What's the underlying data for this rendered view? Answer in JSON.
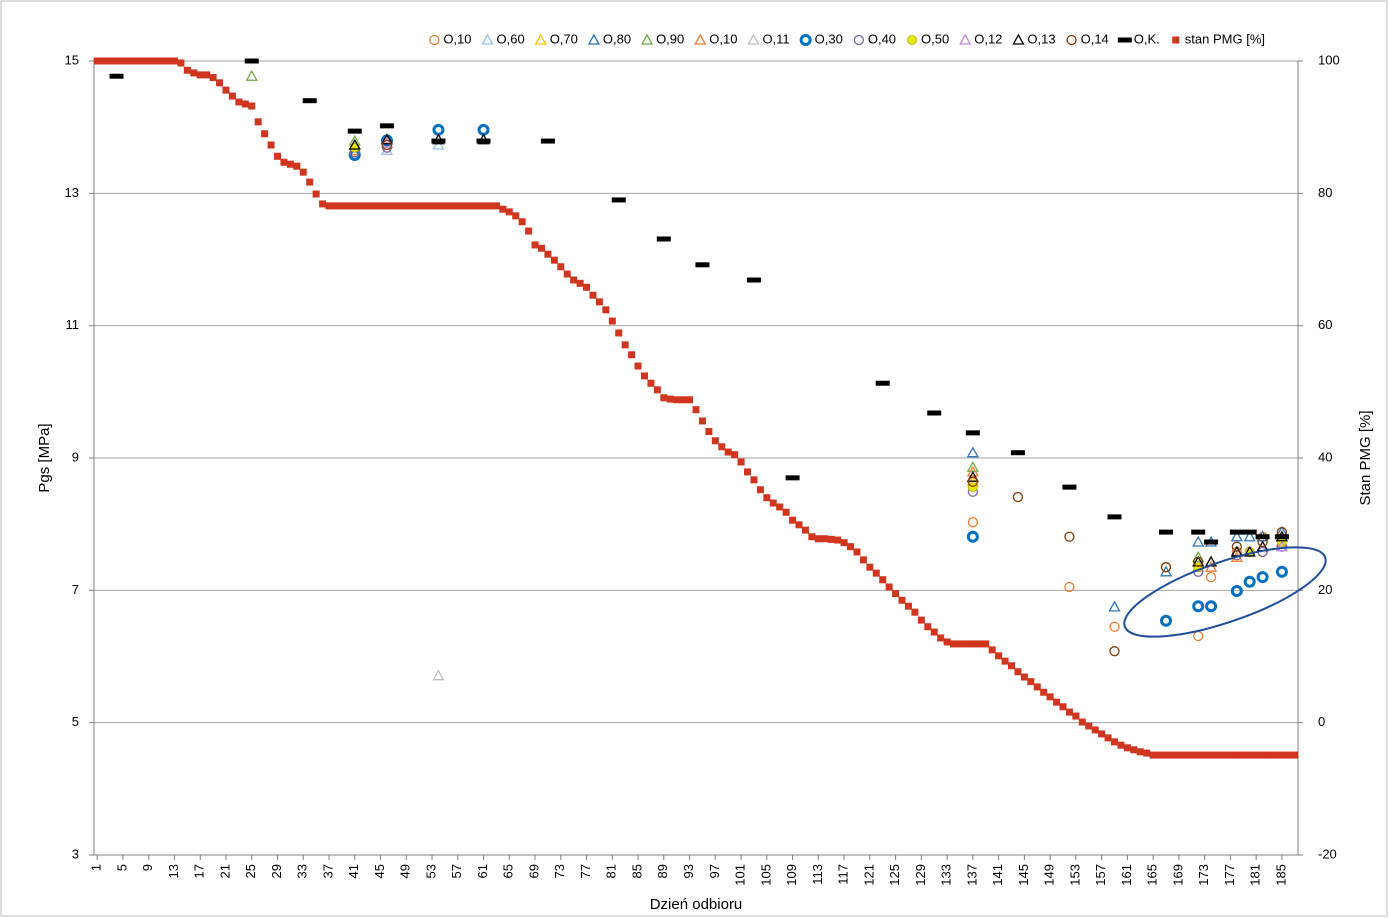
{
  "chart_data": {
    "type": "scatter",
    "x_label": "Dzień odbioru",
    "y_label": "Pgs [MPa]",
    "y2_label": "Stan PMG [%]",
    "xlim": [
      0.5,
      187.5
    ],
    "xticks": [
      1,
      5,
      9,
      13,
      17,
      21,
      25,
      29,
      33,
      37,
      41,
      45,
      49,
      53,
      57,
      61,
      65,
      69,
      73,
      77,
      81,
      85,
      89,
      93,
      97,
      101,
      105,
      109,
      113,
      117,
      121,
      125,
      129,
      133,
      137,
      141,
      145,
      149,
      153,
      157,
      161,
      165,
      169,
      173,
      177,
      181,
      185
    ],
    "ylim": [
      3,
      15
    ],
    "yticks": [
      3,
      5,
      7,
      9,
      11,
      13,
      15
    ],
    "y2lim": [
      -20,
      100
    ],
    "y2ticks": [
      -20,
      0,
      20,
      40,
      60,
      80,
      100
    ],
    "grid": true,
    "series": [
      {
        "name": "O,10",
        "color": "#ed7d31",
        "marker": "circle",
        "x": [
          41,
          46,
          137,
          152,
          159,
          167,
          172,
          174,
          178,
          180,
          182,
          185
        ],
        "values": [
          13.65,
          13.73,
          8.03,
          7.05,
          6.45,
          7.35,
          6.31,
          7.2,
          7.58,
          7.58,
          7.81,
          7.88
        ]
      },
      {
        "name": "O,60",
        "color": "#9dc3e6",
        "marker": "triangle",
        "x": [
          41,
          46,
          54
        ],
        "values": [
          13.72,
          13.65,
          13.73
        ]
      },
      {
        "name": "O,70",
        "color": "#ffc000",
        "marker": "triangle",
        "x": [
          41,
          46,
          137,
          172,
          178,
          185
        ],
        "values": [
          13.73,
          13.76,
          8.64,
          7.35,
          7.58,
          7.81
        ]
      },
      {
        "name": "O,80",
        "color": "#2e75b6",
        "marker": "triangle",
        "x": [
          137,
          159,
          167,
          172,
          174,
          178,
          180,
          182,
          185
        ],
        "values": [
          9.08,
          6.75,
          7.28,
          7.73,
          7.73,
          7.81,
          7.81,
          7.81,
          7.88
        ]
      },
      {
        "name": "O,90",
        "color": "#70ad47",
        "marker": "triangle",
        "x": [
          25,
          41,
          46,
          137,
          172,
          178,
          185
        ],
        "values": [
          14.77,
          13.79,
          13.81,
          8.86,
          7.5,
          7.58,
          7.81
        ]
      },
      {
        "name": "O,10",
        "color": "#ed7d31",
        "marker": "triangle",
        "x": [
          137,
          174,
          178,
          185
        ],
        "values": [
          8.79,
          7.35,
          7.5,
          7.73
        ]
      },
      {
        "name": "O,11",
        "color": "#bfbfbf",
        "marker": "triangle",
        "x": [
          54
        ],
        "values": [
          5.71
        ]
      },
      {
        "name": "O,30",
        "color": "#0070c0",
        "marker": "circle-bold",
        "x": [
          41,
          46,
          54,
          61,
          137,
          167,
          172,
          174,
          178,
          180,
          182,
          185
        ],
        "values": [
          13.58,
          13.8,
          13.96,
          13.96,
          7.81,
          6.54,
          6.76,
          6.76,
          6.99,
          7.13,
          7.2,
          7.28
        ]
      },
      {
        "name": "O,40",
        "color": "#8064a2",
        "marker": "circle",
        "x": [
          41,
          46,
          137,
          172,
          178,
          182,
          185
        ],
        "values": [
          13.62,
          13.69,
          8.49,
          7.28,
          7.53,
          7.58,
          7.66
        ]
      },
      {
        "name": "O,50",
        "color": "#e6e600",
        "marker": "circle-filled",
        "x": [
          41,
          137,
          172,
          180,
          185
        ],
        "values": [
          13.69,
          8.56,
          7.35,
          7.58,
          7.73
        ]
      },
      {
        "name": "O,12",
        "color": "#c58bd6",
        "marker": "triangle",
        "x": [
          46,
          185
        ],
        "values": [
          13.76,
          7.66
        ]
      },
      {
        "name": "O,13",
        "color": "#000000",
        "marker": "triangle",
        "x": [
          41,
          46,
          54,
          61,
          137,
          172,
          174,
          178,
          180,
          182,
          185
        ],
        "values": [
          13.73,
          13.81,
          13.81,
          13.81,
          8.71,
          7.43,
          7.43,
          7.58,
          7.58,
          7.66,
          7.81
        ]
      },
      {
        "name": "O,14",
        "color": "#843c0c",
        "marker": "circle",
        "x": [
          46,
          137,
          144,
          152,
          159,
          167,
          172,
          178,
          182,
          185
        ],
        "values": [
          13.73,
          8.64,
          8.41,
          7.81,
          6.08,
          7.35,
          7.43,
          7.66,
          7.73,
          7.88
        ]
      },
      {
        "name": "O,K.",
        "color": "#000000",
        "marker": "dash",
        "x": [
          4,
          25,
          34,
          41,
          46,
          54,
          61,
          71,
          82,
          89,
          95,
          103,
          109,
          123,
          131,
          137,
          144,
          152,
          159,
          167,
          172,
          174,
          178,
          180,
          182,
          185
        ],
        "values": [
          14.77,
          15.0,
          14.4,
          13.94,
          14.02,
          13.79,
          13.79,
          13.79,
          12.9,
          12.31,
          11.92,
          11.69,
          8.7,
          10.13,
          9.68,
          9.38,
          9.08,
          8.56,
          8.11,
          7.88,
          7.88,
          7.73,
          7.88,
          7.88,
          7.81,
          7.81
        ]
      },
      {
        "name": "stan PMG [%]",
        "color": "#d0351f",
        "marker": "square",
        "axis": "y2",
        "x": [
          1,
          2,
          3,
          4,
          5,
          6,
          7,
          8,
          9,
          10,
          11,
          12,
          13,
          14,
          15,
          16,
          17,
          18,
          19,
          20,
          21,
          22,
          23,
          24,
          25,
          26,
          27,
          28,
          29,
          30,
          31,
          32,
          33,
          34,
          35,
          36,
          37,
          38,
          39,
          40,
          41,
          42,
          43,
          44,
          45,
          46,
          47,
          48,
          49,
          50,
          51,
          52,
          53,
          54,
          55,
          56,
          57,
          58,
          59,
          60,
          61,
          62,
          63,
          64,
          65,
          66,
          67,
          68,
          69,
          70,
          71,
          72,
          73,
          74,
          75,
          76,
          77,
          78,
          79,
          80,
          81,
          82,
          83,
          84,
          85,
          86,
          87,
          88,
          89,
          90,
          91,
          92,
          93,
          94,
          95,
          96,
          97,
          98,
          99,
          100,
          101,
          102,
          103,
          104,
          105,
          106,
          107,
          108,
          109,
          110,
          111,
          112,
          113,
          114,
          115,
          116,
          117,
          118,
          119,
          120,
          121,
          122,
          123,
          124,
          125,
          126,
          127,
          128,
          129,
          130,
          131,
          132,
          133,
          134,
          135,
          136,
          137,
          138,
          139,
          140,
          141,
          142,
          143,
          144,
          145,
          146,
          147,
          148,
          149,
          150,
          151,
          152,
          153,
          154,
          155,
          156,
          157,
          158,
          159,
          160,
          161,
          162,
          163,
          164,
          165,
          166,
          167,
          168,
          169,
          170,
          171,
          172,
          173,
          174,
          175,
          176,
          177,
          178,
          179,
          180,
          181,
          182,
          183,
          184,
          185,
          186,
          187
        ],
        "values": [
          100,
          100,
          100,
          100,
          100,
          100,
          100,
          100,
          100,
          100,
          100,
          100,
          100,
          99.7,
          98.6,
          98.2,
          97.9,
          97.9,
          97.5,
          96.7,
          95.6,
          94.7,
          93.8,
          93.5,
          93.2,
          90.8,
          89,
          87.3,
          85.6,
          84.7,
          84.4,
          84.1,
          83.2,
          81.7,
          79.9,
          78.4,
          78.1,
          78.1,
          78.1,
          78.1,
          78.1,
          78.1,
          78.1,
          78.1,
          78.1,
          78.1,
          78.1,
          78.1,
          78.1,
          78.1,
          78.1,
          78.1,
          78.1,
          78.1,
          78.1,
          78.1,
          78.1,
          78.1,
          78.1,
          78.1,
          78.1,
          78.1,
          78.1,
          77.6,
          77.2,
          76.6,
          75.7,
          74.3,
          72.2,
          71.7,
          70.8,
          69.9,
          68.9,
          67.8,
          66.9,
          66.4,
          65.8,
          64.6,
          63.6,
          62.4,
          60.7,
          58.9,
          57.1,
          55.6,
          53.9,
          52.4,
          51.3,
          50.3,
          49.1,
          48.9,
          48.8,
          48.8,
          48.8,
          47.3,
          45.6,
          44,
          42.6,
          41.7,
          40.9,
          40.5,
          39.4,
          37.9,
          36.7,
          35.2,
          34,
          33.2,
          32.6,
          31.8,
          30.6,
          29.9,
          29.1,
          28.1,
          27.8,
          27.8,
          27.7,
          27.6,
          27.2,
          26.6,
          25.8,
          24.6,
          23.5,
          22.6,
          21.6,
          20.5,
          19.5,
          18.5,
          17.6,
          16.7,
          15.5,
          14.5,
          13.7,
          12.8,
          12.2,
          11.9,
          11.9,
          11.9,
          11.9,
          11.9,
          11.9,
          11,
          10.1,
          9.3,
          8.6,
          7.7,
          6.9,
          6.2,
          5.4,
          4.6,
          3.9,
          3.1,
          2.4,
          1.6,
          1,
          0.1,
          -0.5,
          -1.1,
          -1.7,
          -2.3,
          -2.9,
          -3.4,
          -3.8,
          -4.1,
          -4.4,
          -4.6,
          -4.9,
          -4.9,
          -4.9,
          -4.9,
          -4.9,
          -4.9,
          -4.9,
          -4.9,
          -4.9,
          -4.9,
          -4.9,
          -4.9,
          -4.9,
          -4.9,
          -4.9,
          -4.9,
          -4.9,
          -4.9,
          -4.9,
          -4.9,
          -4.9,
          -4.9,
          -4.9
        ]
      }
    ]
  }
}
